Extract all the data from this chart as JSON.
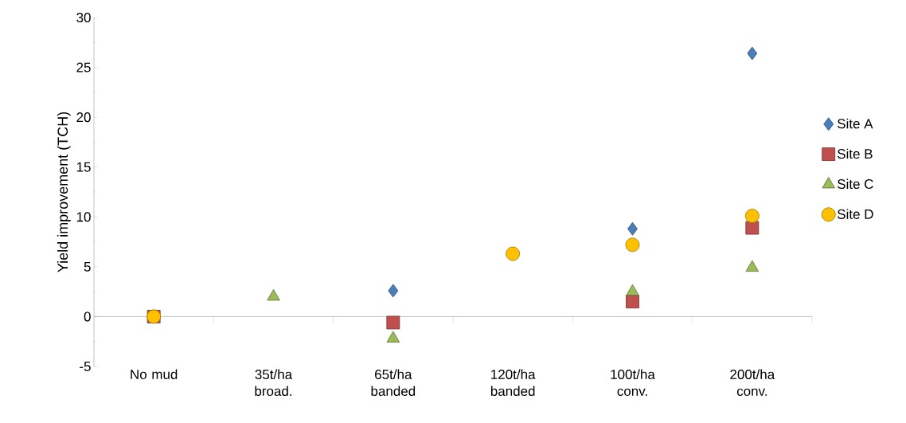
{
  "chart_data": {
    "type": "scatter",
    "ylabel": "Yield improvement (TCH)",
    "categories": [
      "No mud",
      "35t/ha broad.",
      "65t/ha banded",
      "120t/ha banded",
      "100t/ha conv.",
      "200t/ha conv."
    ],
    "ylim": [
      -5,
      30
    ],
    "yticks": [
      -5,
      0,
      5,
      10,
      15,
      20,
      25,
      30
    ],
    "legend": "right",
    "series": [
      {
        "name": "Site A",
        "color": "#4a7ebb",
        "marker": "diamond",
        "values": [
          null,
          null,
          2.6,
          null,
          8.8,
          26.4
        ]
      },
      {
        "name": "Site B",
        "color": "#c0504d",
        "marker": "square",
        "values": [
          0,
          null,
          -0.6,
          null,
          1.5,
          8.9
        ]
      },
      {
        "name": "Site C",
        "color": "#9bbb59",
        "marker": "triangle",
        "values": [
          null,
          2.0,
          -2.2,
          null,
          2.5,
          4.9
        ]
      },
      {
        "name": "Site D",
        "color": "#ffc000",
        "marker": "circle",
        "values": [
          0,
          null,
          null,
          6.3,
          7.2,
          10.1
        ]
      }
    ]
  }
}
